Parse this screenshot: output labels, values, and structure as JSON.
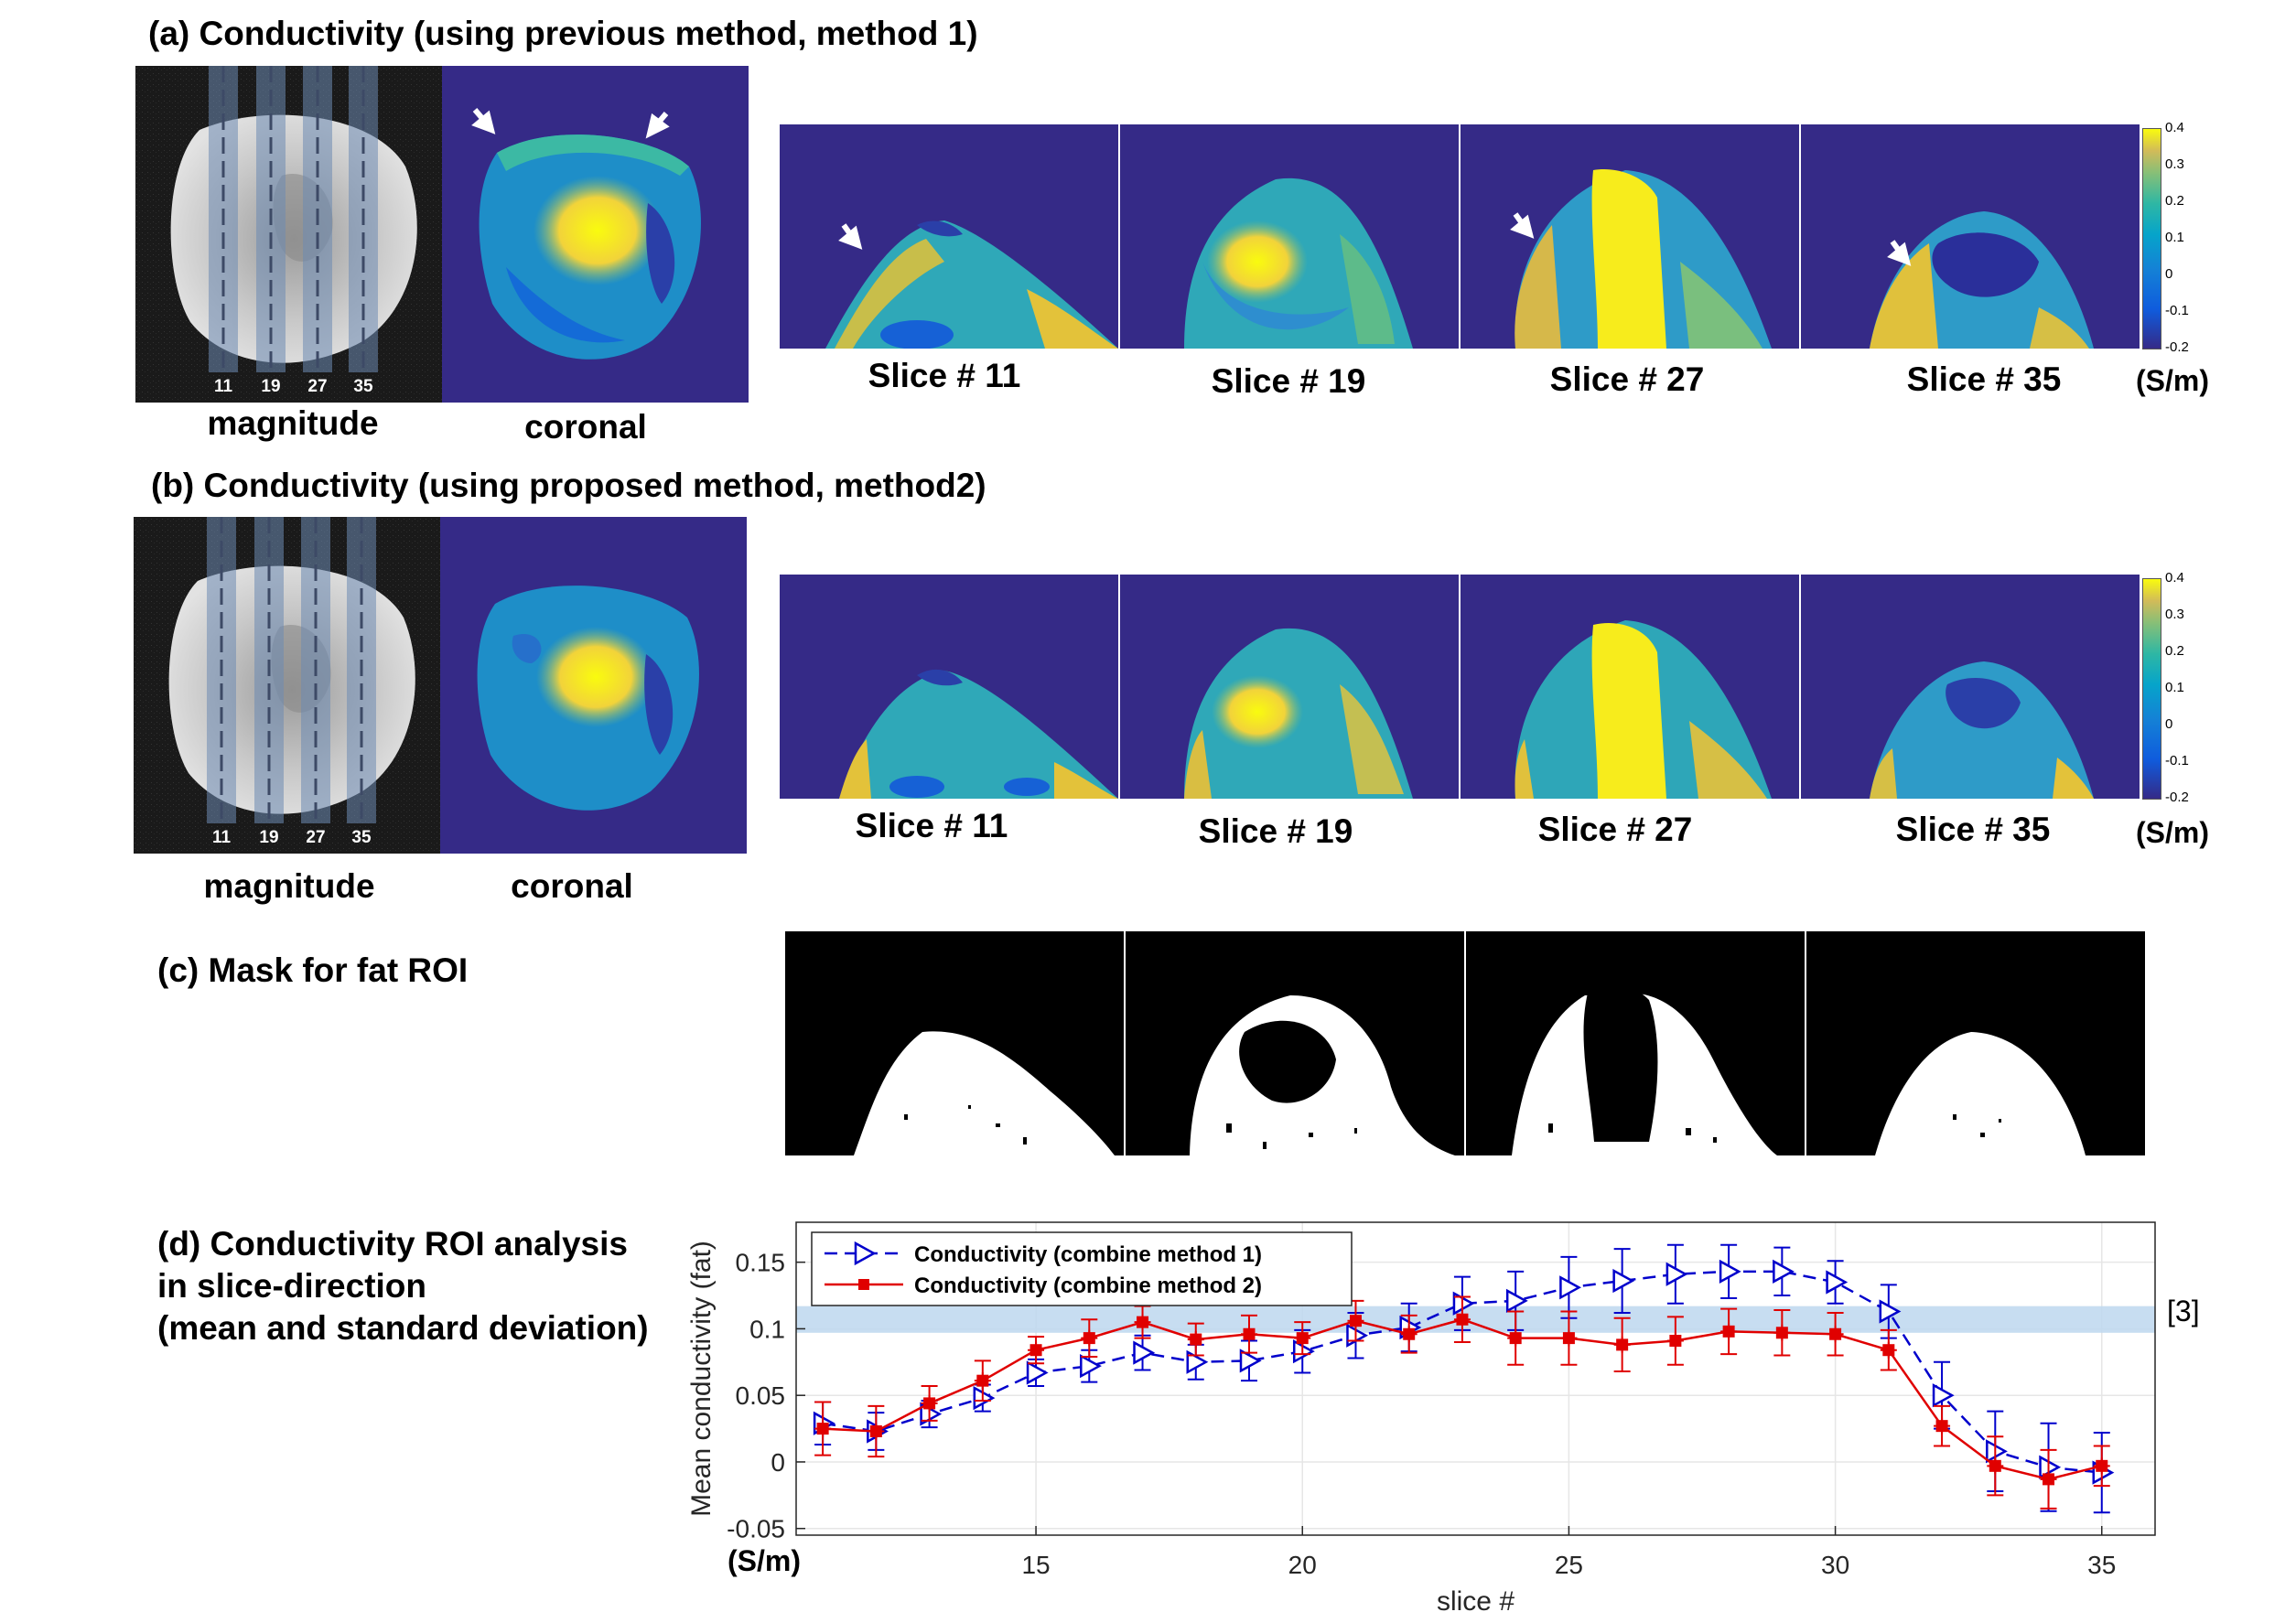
{
  "section_a": {
    "title": "(a) Conductivity (using previous method, method 1)",
    "magnitude_caption": "magnitude",
    "coronal_caption": "coronal",
    "slice_marks": [
      "11",
      "19",
      "27",
      "35"
    ],
    "slices": [
      "Slice # 11",
      "Slice # 19",
      "Slice # 27",
      "Slice # 35"
    ],
    "unit": "(S/m)",
    "colorbar_ticks": [
      "0.4",
      "0.3",
      "0.2",
      "0.1",
      "0",
      "-0.1",
      "-0.2"
    ]
  },
  "section_b": {
    "title": "(b) Conductivity (using proposed method, method2)",
    "magnitude_caption": "magnitude",
    "coronal_caption": "coronal",
    "slice_marks": [
      "11",
      "19",
      "27",
      "35"
    ],
    "slices": [
      "Slice # 11",
      "Slice # 19",
      "Slice # 27",
      "Slice # 35"
    ],
    "unit": "(S/m)",
    "colorbar_ticks": [
      "0.4",
      "0.3",
      "0.2",
      "0.1",
      "0",
      "-0.1",
      "-0.2"
    ]
  },
  "section_c": {
    "title": "(c) Mask for fat ROI"
  },
  "section_d": {
    "title_lines": [
      "(d) Conductivity ROI analysis",
      "in slice-direction",
      "(mean and standard deviation)"
    ],
    "unit": "(S/m)",
    "reference_label": "[3]"
  },
  "colors": {
    "background_blue": "#352A87",
    "method1": "#0000CC",
    "method2": "#E00000",
    "band": "#BDD7EE"
  },
  "chart_data": {
    "type": "line",
    "xlabel": "slice #",
    "ylabel": "Mean conductivity (fat)",
    "xlim": [
      10.5,
      36
    ],
    "ylim": [
      -0.055,
      0.18
    ],
    "xticks": [
      15,
      20,
      25,
      30,
      35
    ],
    "yticks": [
      -0.05,
      0,
      0.05,
      0.1,
      0.15
    ],
    "ytick_labels": [
      "-0.05",
      "0",
      "0.05",
      "0.1",
      "0.15"
    ],
    "grid": true,
    "legend_position": "top-left",
    "reference_band": [
      0.097,
      0.117
    ],
    "x": [
      11,
      12,
      13,
      14,
      15,
      16,
      17,
      18,
      19,
      20,
      21,
      22,
      23,
      24,
      25,
      26,
      27,
      28,
      29,
      30,
      31,
      32,
      33,
      34,
      35
    ],
    "series": [
      {
        "name": "Conductivity (combine method 1)",
        "marker": "triangle-right",
        "line": "dashed",
        "values": [
          0.029,
          0.023,
          0.036,
          0.048,
          0.067,
          0.072,
          0.082,
          0.075,
          0.076,
          0.083,
          0.095,
          0.101,
          0.119,
          0.121,
          0.131,
          0.136,
          0.141,
          0.143,
          0.143,
          0.135,
          0.113,
          0.05,
          0.008,
          -0.004,
          -0.008
        ],
        "errors": [
          0.016,
          0.014,
          0.01,
          0.01,
          0.01,
          0.012,
          0.013,
          0.013,
          0.015,
          0.016,
          0.017,
          0.018,
          0.02,
          0.022,
          0.023,
          0.024,
          0.022,
          0.02,
          0.018,
          0.016,
          0.02,
          0.025,
          0.03,
          0.033,
          0.03
        ]
      },
      {
        "name": "Conductivity (combine method 2)",
        "marker": "star",
        "line": "solid",
        "values": [
          0.025,
          0.023,
          0.044,
          0.061,
          0.084,
          0.093,
          0.105,
          0.092,
          0.096,
          0.093,
          0.106,
          0.096,
          0.107,
          0.093,
          0.093,
          0.088,
          0.091,
          0.098,
          0.097,
          0.096,
          0.084,
          0.027,
          -0.003,
          -0.013,
          -0.003
        ],
        "errors": [
          0.02,
          0.019,
          0.013,
          0.015,
          0.01,
          0.014,
          0.012,
          0.012,
          0.014,
          0.012,
          0.015,
          0.014,
          0.017,
          0.02,
          0.02,
          0.02,
          0.018,
          0.017,
          0.017,
          0.016,
          0.015,
          0.015,
          0.022,
          0.022,
          0.015
        ]
      }
    ]
  }
}
